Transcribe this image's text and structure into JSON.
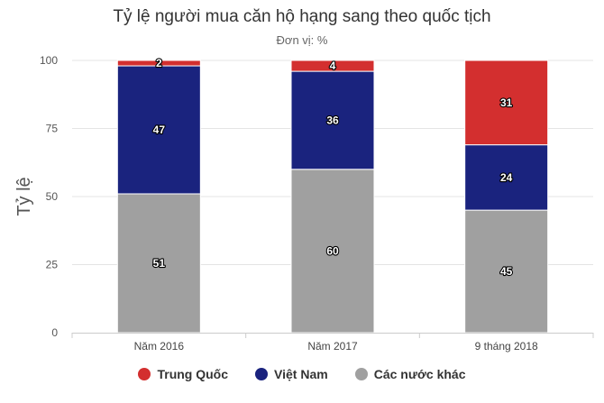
{
  "chart_data": {
    "type": "bar",
    "stacked": true,
    "title": "Tỷ lệ người mua căn hộ hạng sang theo quốc tịch",
    "subtitle": "Đơn vị: %",
    "ylabel": "Tỷ lệ",
    "ylim": [
      0,
      100
    ],
    "yticks": [
      0,
      25,
      50,
      75,
      100
    ],
    "ytick_labels": [
      "0",
      "25",
      "50",
      "75",
      "100"
    ],
    "grid": true,
    "legend_position": "bottom",
    "categories": [
      "Năm 2016",
      "Năm 2017",
      "9 tháng 2018"
    ],
    "series": [
      {
        "name": "Các nước khác",
        "color": "#a0a0a0",
        "values": [
          51,
          60,
          45
        ]
      },
      {
        "name": "Việt Nam",
        "color": "#1a237e",
        "values": [
          47,
          36,
          24
        ]
      },
      {
        "name": "Trung Quốc",
        "color": "#d32f2f",
        "values": [
          2,
          4,
          31
        ]
      }
    ],
    "legend_order": [
      "Trung Quốc",
      "Việt Nam",
      "Các nước khác"
    ]
  }
}
